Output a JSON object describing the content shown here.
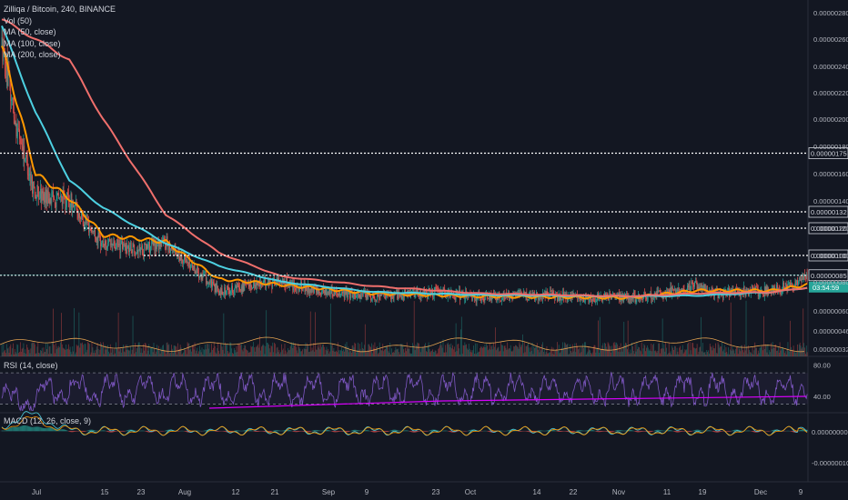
{
  "legend": {
    "title": "Zilliqa / Bitcoin, 240, BINANCE",
    "vol": "Vol (50)",
    "ma50": "MA (50, close)",
    "ma100": "MA (100, close)",
    "ma200": "MA (200, close)"
  },
  "rsi_label": "RSI (14, close)",
  "macd_label": "MACD (12, 26, close, 9)",
  "colors": {
    "background": "#131722",
    "up": "#26a69a",
    "down": "#ef5350",
    "ma50": "#ff9800",
    "ma100": "#4dd0e1",
    "ma200": "#ef6f6c",
    "rsi": "#7e57c2",
    "macd": "#4dd0e1",
    "signal": "#ff9800",
    "divergence": "#d500f9"
  },
  "chart_data": [
    {
      "type": "candlestick",
      "title": "Zilliqa / Bitcoin, 240, BINANCE",
      "ylim": [
        3.2e-07,
        2.9e-06
      ],
      "y_tick_labels": [
        "0.00000280",
        "0.00000260",
        "0.00000240",
        "0.00000220",
        "0.00000200",
        "0.00000180",
        "0.00000160",
        "0.00000140",
        "0.00000120",
        "0.00000100",
        "0.00000080",
        "0.00000060",
        "0.00000046",
        "0.00000032"
      ],
      "x_tick_labels": [
        "Jul",
        "15",
        "23",
        "Aug",
        "12",
        "21",
        "Sep",
        "9",
        "23",
        "Oct",
        "14",
        "22",
        "Nov",
        "11",
        "19",
        "Dec",
        "9"
      ],
      "horizontal_levels": [
        {
          "label": "0.00000175",
          "value": 1.75e-06
        },
        {
          "label": "0.00000132",
          "value": 1.32e-06
        },
        {
          "label": "0.00000120",
          "value": 1.2e-06
        },
        {
          "label": "0.00000100",
          "value": 1e-06
        },
        {
          "label": "0.00000085",
          "value": 8.5e-07
        }
      ],
      "current_price_tag": "0.00000085",
      "countdown_tag": "03:54:59",
      "close_price_approx": [
        {
          "date": "Jun 24",
          "value": 2.55e-06
        },
        {
          "date": "Jun 27",
          "value": 1.95e-06
        },
        {
          "date": "Jul 1",
          "value": 1.45e-06
        },
        {
          "date": "Jul 8",
          "value": 1.4e-06
        },
        {
          "date": "Jul 15",
          "value": 1.08e-06
        },
        {
          "date": "Jul 23",
          "value": 1.05e-06
        },
        {
          "date": "Jul 28",
          "value": 1.1e-06
        },
        {
          "date": "Aug 3",
          "value": 9e-07
        },
        {
          "date": "Aug 8",
          "value": 7.3e-07
        },
        {
          "date": "Aug 15",
          "value": 7.8e-07
        },
        {
          "date": "Aug 21",
          "value": 8.1e-07
        },
        {
          "date": "Aug 26",
          "value": 7.5e-07
        },
        {
          "date": "Sep 1",
          "value": 7.3e-07
        },
        {
          "date": "Sep 9",
          "value": 7e-07
        },
        {
          "date": "Sep 23",
          "value": 7.3e-07
        },
        {
          "date": "Oct 1",
          "value": 6.9e-07
        },
        {
          "date": "Oct 14",
          "value": 7.1e-07
        },
        {
          "date": "Oct 22",
          "value": 6.9e-07
        },
        {
          "date": "Nov 1",
          "value": 6.9e-07
        },
        {
          "date": "Nov 11",
          "value": 7.3e-07
        },
        {
          "date": "Nov 15",
          "value": 7.8e-07
        },
        {
          "date": "Nov 19",
          "value": 7.2e-07
        },
        {
          "date": "Dec 1",
          "value": 7.4e-07
        },
        {
          "date": "Dec 5",
          "value": 7.8e-07
        },
        {
          "date": "Dec 8",
          "value": 8.5e-07
        }
      ],
      "series": [
        {
          "name": "MA (50, close)",
          "values_approx": [
            {
              "date": "Jun 24",
              "value": 2.55e-06
            },
            {
              "date": "Jul 1",
              "value": 1.6e-06
            },
            {
              "date": "Jul 8",
              "value": 1.42e-06
            },
            {
              "date": "Jul 15",
              "value": 1.15e-06
            },
            {
              "date": "Jul 28",
              "value": 1.1e-06
            },
            {
              "date": "Aug 8",
              "value": 8.2e-07
            },
            {
              "date": "Aug 21",
              "value": 7.8e-07
            },
            {
              "date": "Sep 9",
              "value": 7.2e-07
            },
            {
              "date": "Oct 1",
              "value": 7e-07
            },
            {
              "date": "Nov 1",
              "value": 6.9e-07
            },
            {
              "date": "Nov 15",
              "value": 7.4e-07
            },
            {
              "date": "Dec 1",
              "value": 7.4e-07
            },
            {
              "date": "Dec 8",
              "value": 7.8e-07
            }
          ]
        },
        {
          "name": "MA (100, close)",
          "values_approx": [
            {
              "date": "Jun 24",
              "value": 2.7e-06
            },
            {
              "date": "Jul 1",
              "value": 2.05e-06
            },
            {
              "date": "Jul 8",
              "value": 1.55e-06
            },
            {
              "date": "Jul 15",
              "value": 1.35e-06
            },
            {
              "date": "Jul 28",
              "value": 1.09e-06
            },
            {
              "date": "Aug 8",
              "value": 9.2e-07
            },
            {
              "date": "Aug 21",
              "value": 8e-07
            },
            {
              "date": "Sep 9",
              "value": 7.3e-07
            },
            {
              "date": "Oct 1",
              "value": 7.1e-07
            },
            {
              "date": "Nov 1",
              "value": 7e-07
            },
            {
              "date": "Nov 15",
              "value": 7.05e-07
            },
            {
              "date": "Dec 1",
              "value": 7.3e-07
            },
            {
              "date": "Dec 8",
              "value": 7.6e-07
            }
          ]
        },
        {
          "name": "MA (200, close)",
          "values_approx": [
            {
              "date": "Jun 24",
              "value": 2.75e-06
            },
            {
              "date": "Jul 8",
              "value": 2.45e-06
            },
            {
              "date": "Jul 15",
              "value": 2e-06
            },
            {
              "date": "Jul 28",
              "value": 1.3e-06
            },
            {
              "date": "Aug 8",
              "value": 1.02e-06
            },
            {
              "date": "Aug 21",
              "value": 8.4e-07
            },
            {
              "date": "Sep 9",
              "value": 7.7e-07
            },
            {
              "date": "Oct 1",
              "value": 7.2e-07
            },
            {
              "date": "Nov 1",
              "value": 7e-07
            },
            {
              "date": "Nov 15",
              "value": 7.2e-07
            },
            {
              "date": "Dec 1",
              "value": 7.3e-07
            },
            {
              "date": "Dec 8",
              "value": 7.6e-07
            }
          ]
        }
      ]
    },
    {
      "type": "line",
      "title": "RSI (14, close)",
      "ylim": [
        20,
        90
      ],
      "y_tick_labels": [
        "80.00",
        "40.00"
      ],
      "levels": [
        70,
        30
      ]
    },
    {
      "type": "line",
      "title": "MACD (12, 26, close, 9)",
      "y_tick_labels": [
        "0.00000000",
        "-0.00000010"
      ]
    }
  ]
}
